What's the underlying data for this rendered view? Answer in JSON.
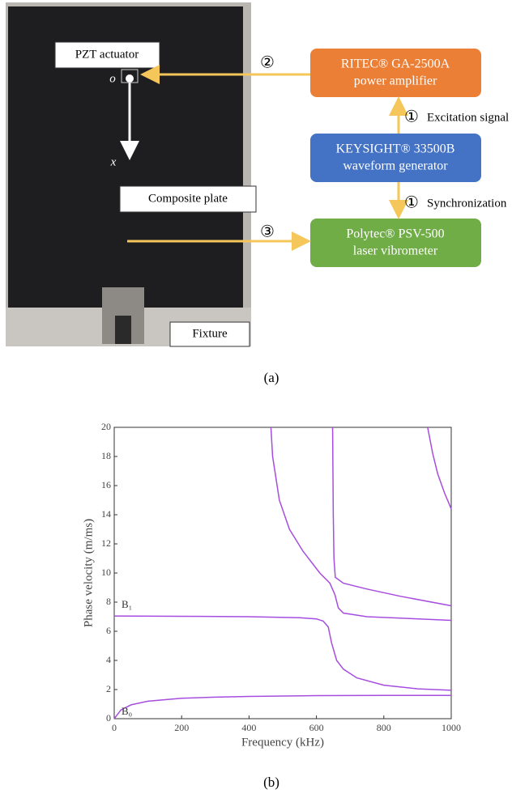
{
  "figure_a": {
    "caption": "(a)",
    "photo_labels": {
      "actuator": "PZT actuator",
      "origin": "o",
      "axis": "x",
      "plate": "Composite plate",
      "fixture": "Fixture"
    },
    "devices": [
      {
        "line1": "RITEC® GA-2500A",
        "line2": "power amplifier"
      },
      {
        "line1": "KEYSIGHT® 33500B",
        "line2": "waveform generator"
      },
      {
        "line1": "Polytec® PSV-500",
        "line2": "laser vibrometer"
      }
    ],
    "steps": [
      {
        "number": "②"
      },
      {
        "number": "①",
        "text": "Excitation signal"
      },
      {
        "number": "①",
        "text": "Synchronization"
      },
      {
        "number": "③"
      }
    ]
  },
  "chart_data": {
    "type": "line",
    "xlabel": "Frequency (kHz)",
    "ylabel": "Phase velocity (m/ms)",
    "xlim": [
      0,
      1000
    ],
    "ylim": [
      0,
      20
    ],
    "xticks": [
      0,
      200,
      400,
      600,
      800,
      1000
    ],
    "yticks": [
      0,
      2,
      4,
      6,
      8,
      10,
      12,
      14,
      16,
      18,
      20
    ],
    "annotations": [
      "B₁",
      "B₀"
    ],
    "series": [
      {
        "color": "#a64ddf",
        "x": [
          0,
          20,
          50,
          100,
          200,
          300,
          400,
          600,
          800,
          1000
        ],
        "values": [
          0,
          0.6,
          0.95,
          1.2,
          1.4,
          1.48,
          1.53,
          1.58,
          1.6,
          1.6
        ]
      },
      {
        "color": "#a64ddf",
        "x": [
          0,
          200,
          400,
          550,
          600,
          620,
          635,
          645,
          660,
          680,
          720,
          800,
          900,
          1000
        ],
        "values": [
          7.05,
          7.03,
          7.0,
          6.93,
          6.85,
          6.7,
          6.3,
          5.2,
          4.0,
          3.4,
          2.8,
          2.3,
          2.05,
          1.95
        ]
      },
      {
        "color": "#a64ddf",
        "x": [
          465,
          470,
          490,
          520,
          560,
          610,
          640,
          655,
          665,
          680,
          750,
          850,
          1000
        ],
        "values": [
          20,
          18,
          15,
          13,
          11.5,
          10,
          9.3,
          8.5,
          7.6,
          7.25,
          7.0,
          6.9,
          6.75
        ]
      },
      {
        "color": "#a64ddf",
        "x": [
          648,
          650,
          652,
          656,
          680,
          750,
          850,
          1000
        ],
        "values": [
          20,
          14,
          11,
          9.7,
          9.3,
          8.9,
          8.4,
          7.75
        ]
      },
      {
        "color": "#a64ddf",
        "x": [
          930,
          945,
          960,
          980,
          1000
        ],
        "values": [
          20,
          18.2,
          16.8,
          15.5,
          14.4
        ]
      }
    ]
  },
  "figure_b": {
    "caption": "(b)"
  }
}
